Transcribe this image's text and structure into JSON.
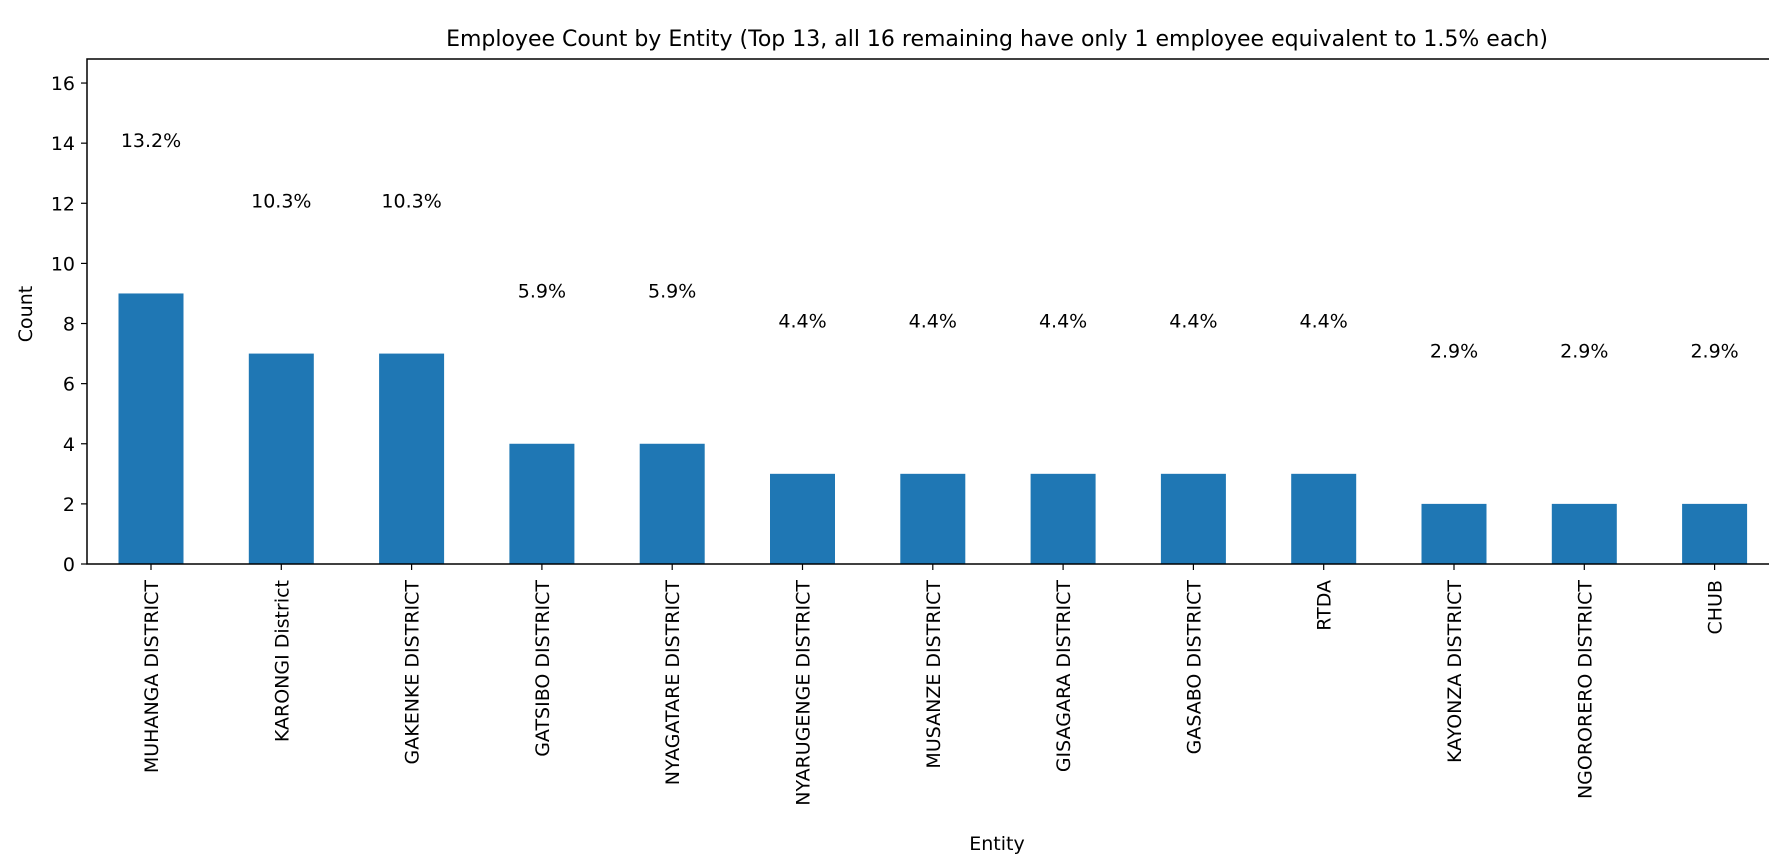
{
  "chart_data": {
    "type": "bar",
    "title": "Employee Count by Entity (Top 13, all 16 remaining have only 1 employee equivalent to 1.5% each)",
    "xlabel": "Entity",
    "ylabel": "Count",
    "ylim": [
      0,
      16.8
    ],
    "yticks": [
      "0",
      "2",
      "4",
      "6",
      "8",
      "10",
      "12",
      "14",
      "16"
    ],
    "categories": [
      "MUHANGA DISTRICT",
      "KARONGI District",
      "GAKENKE DISTRICT",
      "GATSIBO DISTRICT",
      "NYAGATARE DISTRICT",
      "NYARUGENGE DISTRICT",
      "MUSANZE DISTRICT",
      "GISAGARA DISTRICT",
      "GASABO DISTRICT",
      "RTDA",
      "KAYONZA DISTRICT",
      "NGORORERO DISTRICT",
      "CHUB"
    ],
    "values": [
      9,
      7,
      7,
      4,
      4,
      3,
      3,
      3,
      3,
      3,
      2,
      2,
      2
    ],
    "data_labels": [
      "13.2%",
      "10.3%",
      "10.3%",
      "5.9%",
      "5.9%",
      "4.4%",
      "4.4%",
      "4.4%",
      "4.4%",
      "4.4%",
      "2.9%",
      "2.9%",
      "2.9%"
    ],
    "bar_color": "#1f77b4",
    "grid": false,
    "legend": "none"
  }
}
